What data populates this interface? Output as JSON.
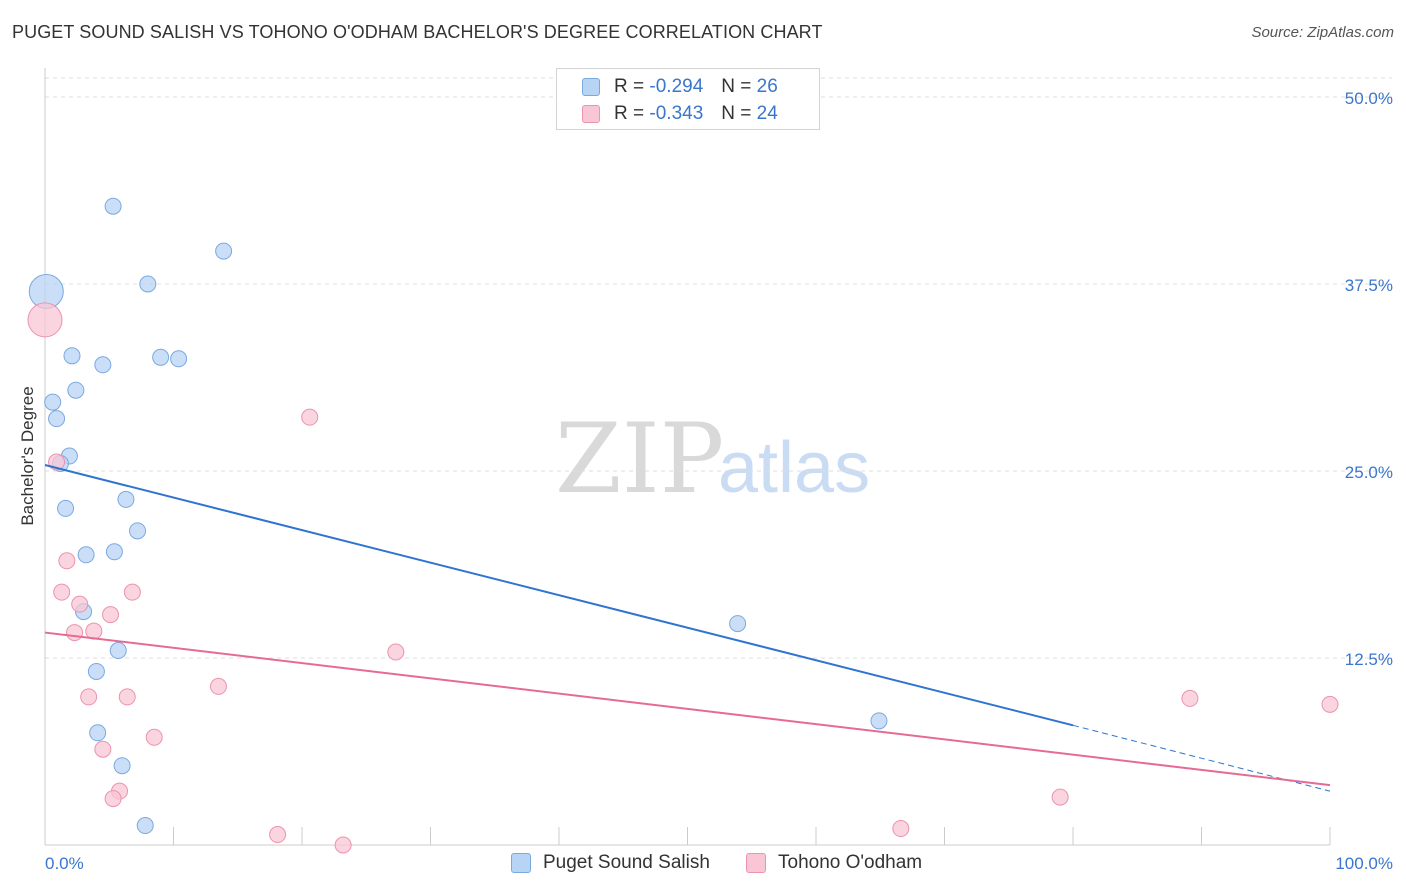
{
  "title": "PUGET SOUND SALISH VS TOHONO O'ODHAM BACHELOR'S DEGREE CORRELATION CHART",
  "source": "Source: ZipAtlas.com",
  "watermark": {
    "zip": "ZIP",
    "atlas": "atlas"
  },
  "colors": {
    "blue_fill": "#b8d4f4",
    "blue_stroke": "#7aa9e0",
    "blue_line": "#2f74d0",
    "pink_fill": "#f8c6d4",
    "pink_stroke": "#ec93ae",
    "pink_line": "#e56b95",
    "tick_label": "#3a76cc",
    "grid": "#dddddd"
  },
  "legend": {
    "rows": [
      {
        "r_label": "R =",
        "r_value": "-0.294",
        "n_label": "N =",
        "n_value": "26"
      },
      {
        "r_label": "R =",
        "r_value": "-0.343",
        "n_label": "N =",
        "n_value": "24"
      }
    ]
  },
  "bottom_legend": {
    "series1": "Puget Sound Salish",
    "series2": "Tohono O'odham"
  },
  "chart_data": {
    "type": "scatter",
    "title": "PUGET SOUND SALISH VS TOHONO O'ODHAM BACHELOR'S DEGREE CORRELATION CHART",
    "xlabel": "",
    "ylabel": "Bachelor's Degree",
    "xlim": [
      0,
      100
    ],
    "ylim": [
      0,
      50
    ],
    "x_tick_labels": [
      "0.0%",
      "100.0%"
    ],
    "y_ticks": [
      12.5,
      25.0,
      37.5,
      50.0
    ],
    "y_tick_labels": [
      "12.5%",
      "25.0%",
      "37.5%",
      "50.0%"
    ],
    "grid": true,
    "series": [
      {
        "name": "Puget Sound Salish",
        "R": -0.294,
        "N": 26,
        "points": [
          {
            "x": 5.3,
            "y": 42.7,
            "big": false
          },
          {
            "x": 13.9,
            "y": 39.7,
            "big": false
          },
          {
            "x": 0.1,
            "y": 37.0,
            "big": true
          },
          {
            "x": 8.0,
            "y": 37.5,
            "big": false
          },
          {
            "x": 2.1,
            "y": 32.7,
            "big": false
          },
          {
            "x": 4.5,
            "y": 32.1,
            "big": false
          },
          {
            "x": 9.0,
            "y": 32.6,
            "big": false
          },
          {
            "x": 10.4,
            "y": 32.5,
            "big": false
          },
          {
            "x": 2.4,
            "y": 30.4,
            "big": false
          },
          {
            "x": 0.6,
            "y": 29.6,
            "big": false
          },
          {
            "x": 0.9,
            "y": 28.5,
            "big": false
          },
          {
            "x": 1.9,
            "y": 26.0,
            "big": false
          },
          {
            "x": 1.2,
            "y": 25.5,
            "big": false
          },
          {
            "x": 6.3,
            "y": 23.1,
            "big": false
          },
          {
            "x": 1.6,
            "y": 22.5,
            "big": false
          },
          {
            "x": 7.2,
            "y": 21.0,
            "big": false
          },
          {
            "x": 3.2,
            "y": 19.4,
            "big": false
          },
          {
            "x": 5.4,
            "y": 19.6,
            "big": false
          },
          {
            "x": 3.0,
            "y": 15.6,
            "big": false
          },
          {
            "x": 5.7,
            "y": 13.0,
            "big": false
          },
          {
            "x": 4.0,
            "y": 11.6,
            "big": false
          },
          {
            "x": 53.9,
            "y": 14.8,
            "big": false
          },
          {
            "x": 4.1,
            "y": 7.5,
            "big": false
          },
          {
            "x": 6.0,
            "y": 5.3,
            "big": false
          },
          {
            "x": 64.9,
            "y": 8.3,
            "big": false
          },
          {
            "x": 7.8,
            "y": 1.3,
            "big": false
          }
        ],
        "trend": {
          "x1": 0,
          "y1": 25.4,
          "x2": 80.0,
          "y2": 8.0,
          "dash_to_x": 100.0,
          "dash_to_y": 3.6
        }
      },
      {
        "name": "Tohono O'odham",
        "R": -0.343,
        "N": 24,
        "points": [
          {
            "x": 0.0,
            "y": 35.1,
            "big": true
          },
          {
            "x": 20.6,
            "y": 28.6,
            "big": false
          },
          {
            "x": 0.9,
            "y": 25.6,
            "big": false
          },
          {
            "x": 1.7,
            "y": 19.0,
            "big": false
          },
          {
            "x": 1.3,
            "y": 16.9,
            "big": false
          },
          {
            "x": 6.8,
            "y": 16.9,
            "big": false
          },
          {
            "x": 2.7,
            "y": 16.1,
            "big": false
          },
          {
            "x": 5.1,
            "y": 15.4,
            "big": false
          },
          {
            "x": 2.3,
            "y": 14.2,
            "big": false
          },
          {
            "x": 3.8,
            "y": 14.3,
            "big": false
          },
          {
            "x": 27.3,
            "y": 12.9,
            "big": false
          },
          {
            "x": 13.5,
            "y": 10.6,
            "big": false
          },
          {
            "x": 3.4,
            "y": 9.9,
            "big": false
          },
          {
            "x": 6.4,
            "y": 9.9,
            "big": false
          },
          {
            "x": 89.1,
            "y": 9.8,
            "big": false
          },
          {
            "x": 100.0,
            "y": 9.4,
            "big": false
          },
          {
            "x": 8.5,
            "y": 7.2,
            "big": false
          },
          {
            "x": 4.5,
            "y": 6.4,
            "big": false
          },
          {
            "x": 5.8,
            "y": 3.6,
            "big": false
          },
          {
            "x": 5.3,
            "y": 3.1,
            "big": false
          },
          {
            "x": 79.0,
            "y": 3.2,
            "big": false
          },
          {
            "x": 66.6,
            "y": 1.1,
            "big": false
          },
          {
            "x": 18.1,
            "y": 0.7,
            "big": false
          },
          {
            "x": 23.2,
            "y": 0.0,
            "big": false
          }
        ],
        "trend": {
          "x1": 0,
          "y1": 14.2,
          "x2": 100.0,
          "y2": 4.0
        }
      }
    ]
  }
}
